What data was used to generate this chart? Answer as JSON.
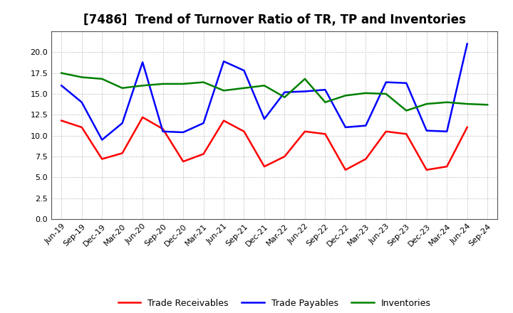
{
  "title": "[7486]  Trend of Turnover Ratio of TR, TP and Inventories",
  "x_labels": [
    "Jun-19",
    "Sep-19",
    "Dec-19",
    "Mar-20",
    "Jun-20",
    "Sep-20",
    "Dec-20",
    "Mar-21",
    "Jun-21",
    "Sep-21",
    "Dec-21",
    "Mar-22",
    "Jun-22",
    "Sep-22",
    "Dec-22",
    "Mar-23",
    "Jun-23",
    "Sep-23",
    "Dec-23",
    "Mar-24",
    "Jun-24",
    "Sep-24"
  ],
  "trade_receivables": [
    11.8,
    11.0,
    7.2,
    7.9,
    12.2,
    10.8,
    6.9,
    7.8,
    11.8,
    10.5,
    6.3,
    7.5,
    10.5,
    10.2,
    5.9,
    7.2,
    10.5,
    10.2,
    5.9,
    6.3,
    11.0,
    null
  ],
  "trade_payables": [
    16.0,
    14.0,
    9.5,
    11.5,
    18.8,
    10.5,
    10.4,
    11.5,
    18.9,
    17.8,
    12.0,
    15.2,
    15.3,
    15.5,
    11.0,
    11.2,
    16.4,
    16.3,
    10.6,
    10.5,
    21.0,
    null
  ],
  "inventories": [
    17.5,
    17.0,
    16.8,
    15.7,
    16.0,
    16.2,
    16.2,
    16.4,
    15.4,
    15.7,
    16.0,
    14.6,
    16.8,
    14.0,
    14.8,
    15.1,
    15.0,
    13.0,
    13.8,
    14.0,
    13.8,
    13.7
  ],
  "color_tr": "#FF0000",
  "color_tp": "#0000FF",
  "color_inv": "#008000",
  "ylim": [
    0.0,
    22.5
  ],
  "yticks": [
    0.0,
    2.5,
    5.0,
    7.5,
    10.0,
    12.5,
    15.0,
    17.5,
    20.0
  ],
  "legend_labels": [
    "Trade Receivables",
    "Trade Payables",
    "Inventories"
  ],
  "bg_color": "#FFFFFF",
  "grid_color": "#AAAAAA",
  "title_fontsize": 12,
  "tick_fontsize": 8,
  "legend_fontsize": 9,
  "linewidth": 1.8
}
